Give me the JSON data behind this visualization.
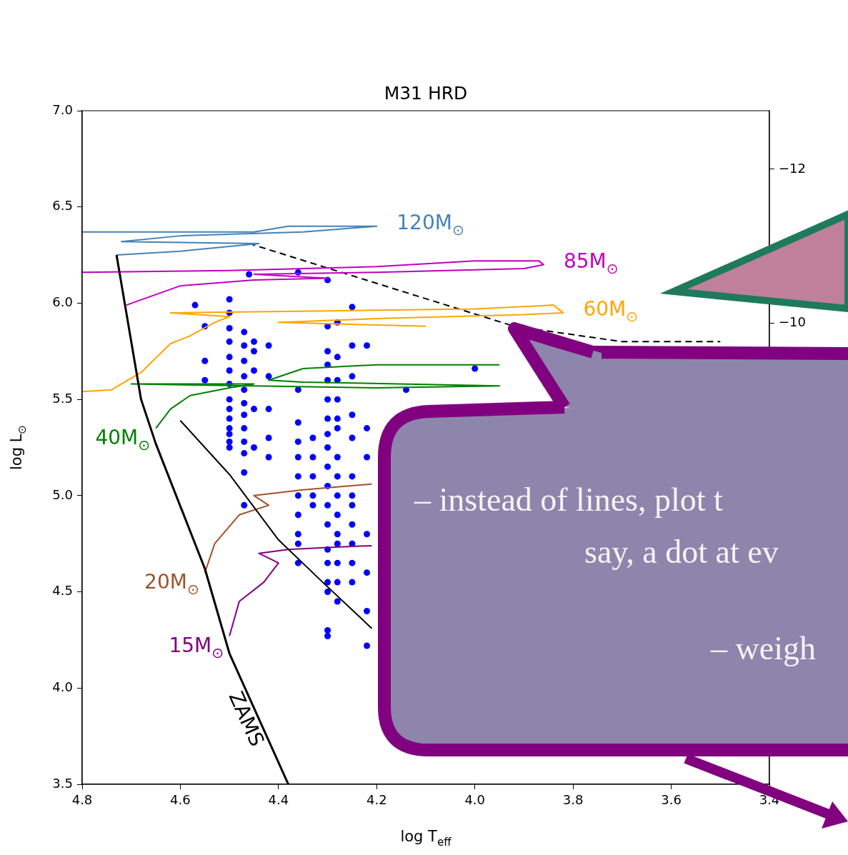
{
  "chart_data": {
    "type": "line",
    "title": "M31 HRD",
    "xlabel": "log T$_{eff}$",
    "ylabel": "log L$_{⊙}$",
    "xlim": [
      4.8,
      3.4
    ],
    "xticks": [
      4.8,
      4.6,
      4.4,
      4.2,
      {
        "value": 4,
        "label": "4.0"
      },
      3.8,
      3.6,
      3.4
    ],
    "ylim": [
      3.5,
      7.0
    ],
    "yticks": [
      3.5,
      {
        "value": 4,
        "label": "4.0"
      },
      4.5,
      {
        "value": 5,
        "label": "5.0"
      },
      5.5,
      {
        "value": 6,
        "label": "6.0"
      },
      6.5,
      {
        "value": 7,
        "label": "7.0"
      }
    ],
    "y2lim": [
      -4.01,
      -12.76
    ],
    "y2ticks": [
      {
        "value": -12,
        "label": "−12"
      },
      {
        "value": -10,
        "label": "−10"
      }
    ],
    "grid": false,
    "marker": "none",
    "annotations": [
      "– instead of lines, plot t",
      "say, a dot at ev",
      "– weigh"
    ],
    "series": [
      {
        "name": "ZAMS",
        "color": "#000000",
        "x": [
          4.73,
          4.68,
          4.65,
          4.55,
          4.5,
          4.38
        ],
        "values": [
          6.25,
          5.5,
          5.27,
          4.62,
          4.18,
          3.5
        ]
      },
      {
        "color": "#000000",
        "x": [
          4.6,
          4.5,
          4.4,
          4.31,
          4.21
        ],
        "values": [
          5.39,
          5.11,
          4.77,
          4.55,
          4.31
        ]
      },
      {
        "name": "120M$_{⊙}$",
        "color": "#4682b4",
        "x": [
          4.8,
          4.62,
          4.45,
          4.38,
          4.2,
          4.35,
          4.6,
          4.72,
          4.44,
          4.6,
          4.73
        ],
        "values": [
          6.37,
          6.37,
          6.37,
          6.4,
          6.4,
          6.37,
          6.35,
          6.32,
          6.31,
          6.27,
          6.25
        ]
      },
      {
        "name": "85M$_{⊙}$",
        "color": "#c000c0",
        "x": [
          4.8,
          4.5,
          4.2,
          4.0,
          3.87,
          3.86,
          3.9,
          4.2,
          4.45,
          4.3,
          4.45,
          4.6,
          4.71
        ],
        "values": [
          6.16,
          6.17,
          6.19,
          6.22,
          6.22,
          6.2,
          6.18,
          6.16,
          6.15,
          6.13,
          6.12,
          6.09,
          5.99
        ]
      },
      {
        "name": "60M$_{⊙}$",
        "color": "#ffa500",
        "x": [
          4.8,
          4.74,
          4.68,
          4.62,
          4.58,
          4.53,
          4.5,
          4.62,
          4.3,
          4.0,
          3.84,
          3.82,
          3.9,
          4.2,
          4.4,
          4.1
        ],
        "values": [
          5.54,
          5.55,
          5.64,
          5.79,
          5.83,
          5.9,
          5.93,
          5.95,
          5.96,
          5.97,
          5.99,
          5.95,
          5.94,
          5.92,
          5.9,
          5.88
        ]
      },
      {
        "name": "40M$_{⊙}$",
        "color": "#008000",
        "x": [
          4.65,
          4.62,
          4.58,
          4.5,
          4.45,
          4.7,
          4.45,
          4.2,
          3.95,
          4.35,
          4.42,
          4.35,
          4.2,
          3.95
        ],
        "values": [
          5.35,
          5.45,
          5.52,
          5.56,
          5.58,
          5.58,
          5.57,
          5.56,
          5.57,
          5.59,
          5.6,
          5.66,
          5.68,
          5.68
        ]
      },
      {
        "name": "20M$_{⊙}$",
        "color": "#a0522d",
        "x": [
          4.55,
          4.53,
          4.48,
          4.42,
          4.45,
          4.35,
          4.21
        ],
        "values": [
          4.6,
          4.75,
          4.9,
          4.95,
          5.0,
          5.03,
          5.06
        ]
      },
      {
        "name": "15M$_{⊙}$",
        "color": "#800080",
        "x": [
          4.5,
          4.48,
          4.43,
          4.4,
          4.44,
          4.38,
          4.3,
          4.21
        ],
        "values": [
          4.27,
          4.45,
          4.55,
          4.65,
          4.7,
          4.72,
          4.73,
          4.74
        ]
      },
      {
        "color": "#000000",
        "line_style": "dashed",
        "x": [
          4.46,
          3.92,
          3.7,
          3.5
        ],
        "values": [
          6.31,
          5.88,
          5.8,
          5.8
        ]
      },
      {
        "type": "scatter",
        "marker": "circle",
        "color": "#0000ff",
        "x": [
          4.57,
          4.55,
          4.55,
          4.55,
          4.5,
          4.5,
          4.5,
          4.5,
          4.5,
          4.5,
          4.5,
          4.5,
          4.5,
          4.5,
          4.5,
          4.5,
          4.5,
          4.5,
          4.47,
          4.47,
          4.47,
          4.47,
          4.47,
          4.47,
          4.47,
          4.47,
          4.47,
          4.47,
          4.47,
          4.47,
          4.45,
          4.45,
          4.45,
          4.45,
          4.45,
          4.46,
          4.42,
          4.42,
          4.42,
          4.42,
          4.42,
          4.36,
          4.36,
          4.36,
          4.36,
          4.36,
          4.36,
          4.36,
          4.36,
          4.36,
          4.36,
          4.36,
          4.33,
          4.33,
          4.33,
          4.33,
          4.33,
          4.3,
          4.3,
          4.3,
          4.3,
          4.3,
          4.3,
          4.3,
          4.3,
          4.3,
          4.3,
          4.3,
          4.3,
          4.3,
          4.3,
          4.3,
          4.3,
          4.3,
          4.3,
          4.3,
          4.28,
          4.28,
          4.28,
          4.28,
          4.28,
          4.28,
          4.28,
          4.28,
          4.28,
          4.28,
          4.28,
          4.28,
          4.28,
          4.28,
          4.28,
          4.25,
          4.25,
          4.25,
          4.25,
          4.25,
          4.25,
          4.25,
          4.25,
          4.25,
          4.25,
          4.25,
          4.25,
          4.22,
          4.22,
          4.22,
          4.22,
          4.22,
          4.22,
          4.22,
          4.14,
          4.0
        ],
        "values": [
          5.99,
          5.88,
          5.7,
          5.6,
          6.02,
          5.95,
          5.87,
          5.8,
          5.72,
          5.65,
          5.58,
          5.5,
          5.45,
          5.4,
          5.35,
          5.32,
          5.28,
          5.25,
          5.85,
          5.78,
          5.7,
          5.62,
          5.55,
          5.48,
          5.42,
          5.35,
          5.28,
          5.22,
          5.12,
          4.95,
          5.8,
          5.75,
          5.65,
          5.45,
          5.25,
          6.15,
          5.78,
          5.62,
          5.45,
          5.3,
          5.2,
          6.16,
          5.55,
          5.38,
          5.28,
          5.2,
          5.1,
          5.0,
          4.9,
          4.8,
          4.75,
          4.65,
          5.3,
          5.2,
          5.1,
          5.0,
          4.95,
          6.12,
          5.88,
          5.75,
          5.68,
          5.6,
          5.5,
          5.4,
          5.32,
          5.25,
          5.15,
          5.05,
          4.95,
          4.85,
          4.72,
          4.65,
          4.55,
          4.5,
          4.3,
          4.27,
          5.9,
          5.72,
          5.6,
          5.5,
          5.4,
          5.35,
          5.2,
          5.1,
          5.0,
          4.9,
          4.8,
          4.75,
          4.65,
          4.55,
          4.45,
          5.98,
          5.78,
          5.62,
          5.42,
          5.3,
          5.1,
          5.0,
          4.95,
          4.85,
          4.75,
          4.65,
          4.55,
          5.78,
          5.35,
          5.2,
          4.8,
          4.6,
          4.4,
          4.22,
          5.55,
          5.66
        ]
      }
    ]
  }
}
